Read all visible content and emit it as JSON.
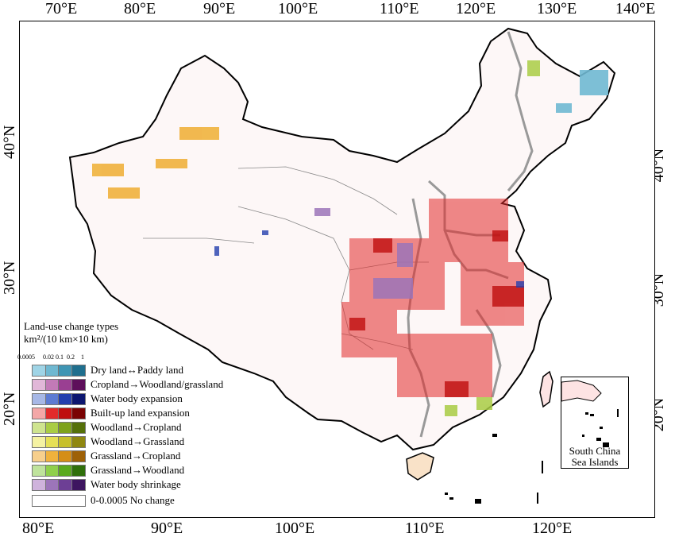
{
  "map": {
    "top_ticks": [
      "70°E",
      "80°E",
      "90°E",
      "100°E",
      "110°E",
      "120°E",
      "130°E",
      "140°E"
    ],
    "bottom_ticks": [
      "80°E",
      "90°E",
      "100°E",
      "110°E",
      "120°E"
    ],
    "left_ticks": [
      "40°N",
      "30°N",
      "20°N"
    ],
    "right_ticks": [
      "40°N",
      "30°N",
      "20°N"
    ],
    "inset_label_line1": "South China",
    "inset_label_line2": "Sea Islands"
  },
  "legend": {
    "title": "Land-use change types",
    "units": "km²/(10 km×10 km)",
    "scale_values": [
      "0.0005",
      "0.02",
      "0.1",
      "0.2",
      "1"
    ],
    "items": [
      {
        "label": "Dry land↔Paddy land",
        "colors": [
          "#9fd4e6",
          "#6fb8d1",
          "#3f95b4",
          "#1f6f8e"
        ]
      },
      {
        "label": "Cropland→Woodland/grassland",
        "colors": [
          "#e1b7d8",
          "#c27ab7",
          "#9a3f92",
          "#5e0f5b"
        ]
      },
      {
        "label": "Water body expansion",
        "colors": [
          "#a7b8e6",
          "#5d7bd3",
          "#243fae",
          "#0c1670"
        ]
      },
      {
        "label": "Built-up land expansion",
        "colors": [
          "#f4a7a7",
          "#e22b2b",
          "#bf0e0e",
          "#7a0303"
        ]
      },
      {
        "label": "Woodland→Cropland",
        "colors": [
          "#cfe48f",
          "#a9cc44",
          "#7ea21b",
          "#55700a"
        ]
      },
      {
        "label": "Woodland→Grassland",
        "colors": [
          "#f5f2a2",
          "#e6e056",
          "#c7c02b",
          "#8f8710"
        ]
      },
      {
        "label": "Grassland→Cropland",
        "colors": [
          "#f7cf8c",
          "#f0b23d",
          "#d58e17",
          "#9e6106"
        ]
      },
      {
        "label": "Grassland→Woodland",
        "colors": [
          "#bfe39c",
          "#8fcf4b",
          "#5aa91e",
          "#2f6f0a"
        ]
      },
      {
        "label": "Water body shrinkage",
        "colors": [
          "#cfb3dc",
          "#9c75b9",
          "#6d3f95",
          "#3d1560"
        ]
      }
    ],
    "nochange_label": "0-0.0005 No change"
  }
}
